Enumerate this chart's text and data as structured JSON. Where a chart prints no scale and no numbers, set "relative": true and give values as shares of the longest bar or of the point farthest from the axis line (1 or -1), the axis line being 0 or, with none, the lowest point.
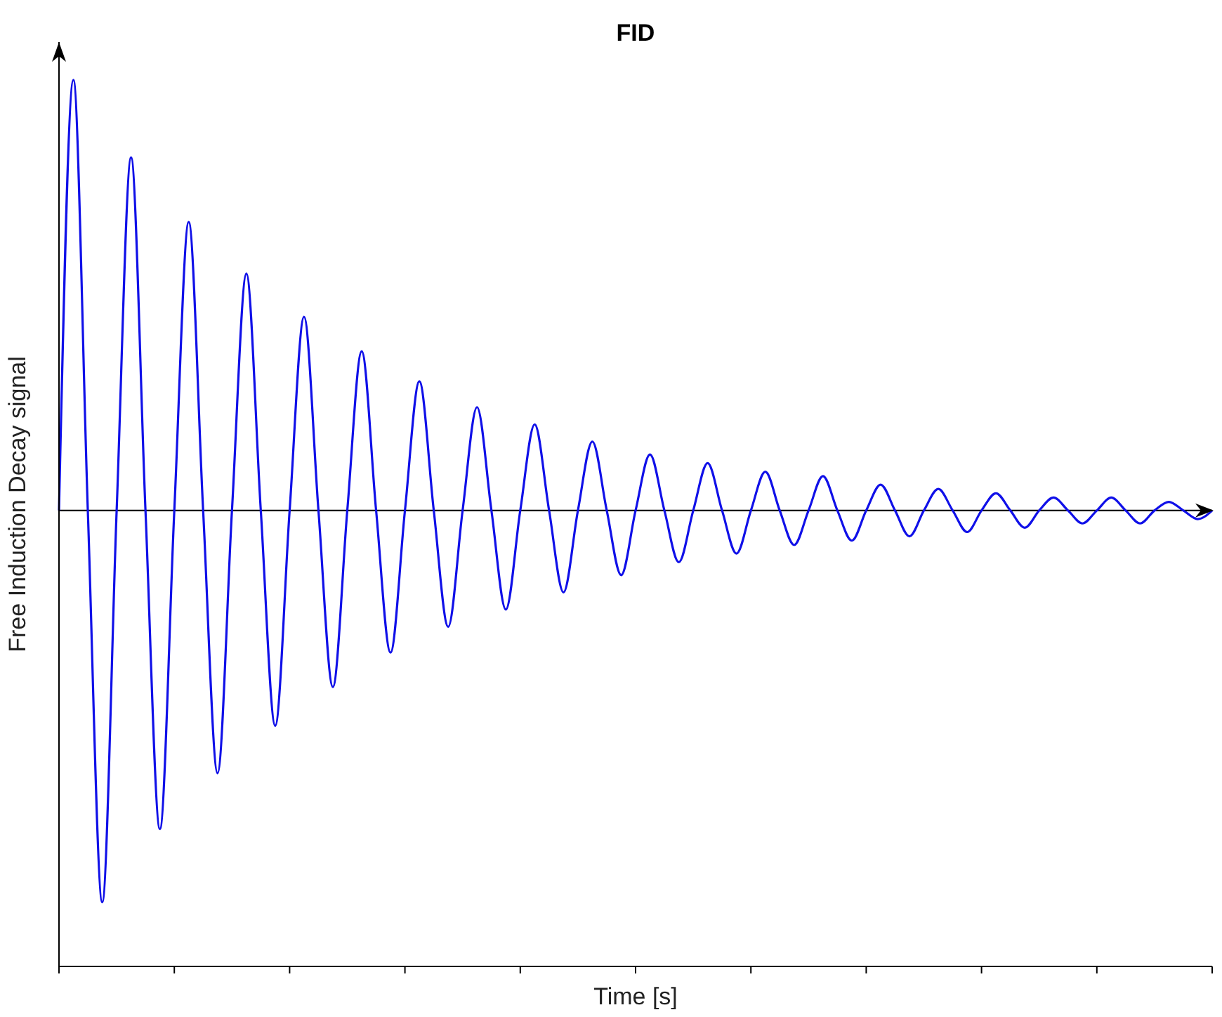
{
  "chart_data": {
    "type": "line",
    "title": "FID",
    "xlabel": "Time [s]",
    "ylabel": "Free Induction Decay signal",
    "relative": true,
    "categories": [
      null,
      null,
      null,
      null,
      null,
      null,
      null,
      null,
      null,
      null,
      null,
      null,
      null,
      null,
      null,
      null,
      null,
      null,
      null,
      null,
      null,
      null,
      null,
      null,
      null,
      null,
      null,
      null,
      null,
      null,
      null,
      null,
      null,
      null,
      null,
      null,
      null,
      null,
      null,
      null,
      null,
      null,
      null,
      null,
      null,
      null,
      null,
      null,
      null,
      null,
      null,
      null,
      null,
      null,
      null,
      null,
      null,
      null,
      null,
      null,
      null,
      null,
      null,
      null,
      null,
      null,
      null,
      null,
      null,
      null,
      null,
      null,
      null,
      null,
      null,
      null,
      null,
      null,
      null,
      null,
      null
    ],
    "series": [
      {
        "color": "#1010e8",
        "values": [
          0,
          1,
          0,
          -0.91,
          0,
          0.82,
          0,
          -0.74,
          0,
          0.67,
          0,
          -0.61,
          0,
          0.55,
          0,
          -0.5,
          0,
          0.45,
          0,
          -0.41,
          0,
          0.37,
          0,
          -0.33,
          0,
          0.3,
          0,
          -0.27,
          0,
          0.24,
          0,
          -0.23,
          0,
          0.2,
          0,
          -0.19,
          0,
          0.16,
          0,
          -0.15,
          0,
          0.13,
          0,
          -0.12,
          0,
          0.11,
          0,
          -0.1,
          0,
          0.09,
          0,
          -0.08,
          0,
          0.08,
          0,
          -0.07,
          0,
          0.06,
          0,
          -0.06,
          0,
          0.05,
          0,
          -0.05,
          0,
          0.04,
          0,
          -0.04,
          0,
          0.03,
          0,
          -0.03,
          0,
          0.03,
          0,
          -0.03,
          0,
          0.02,
          0,
          -0.02,
          0
        ]
      }
    ],
    "ref_lines": [
      {
        "axis": "y",
        "value": 0
      }
    ]
  }
}
